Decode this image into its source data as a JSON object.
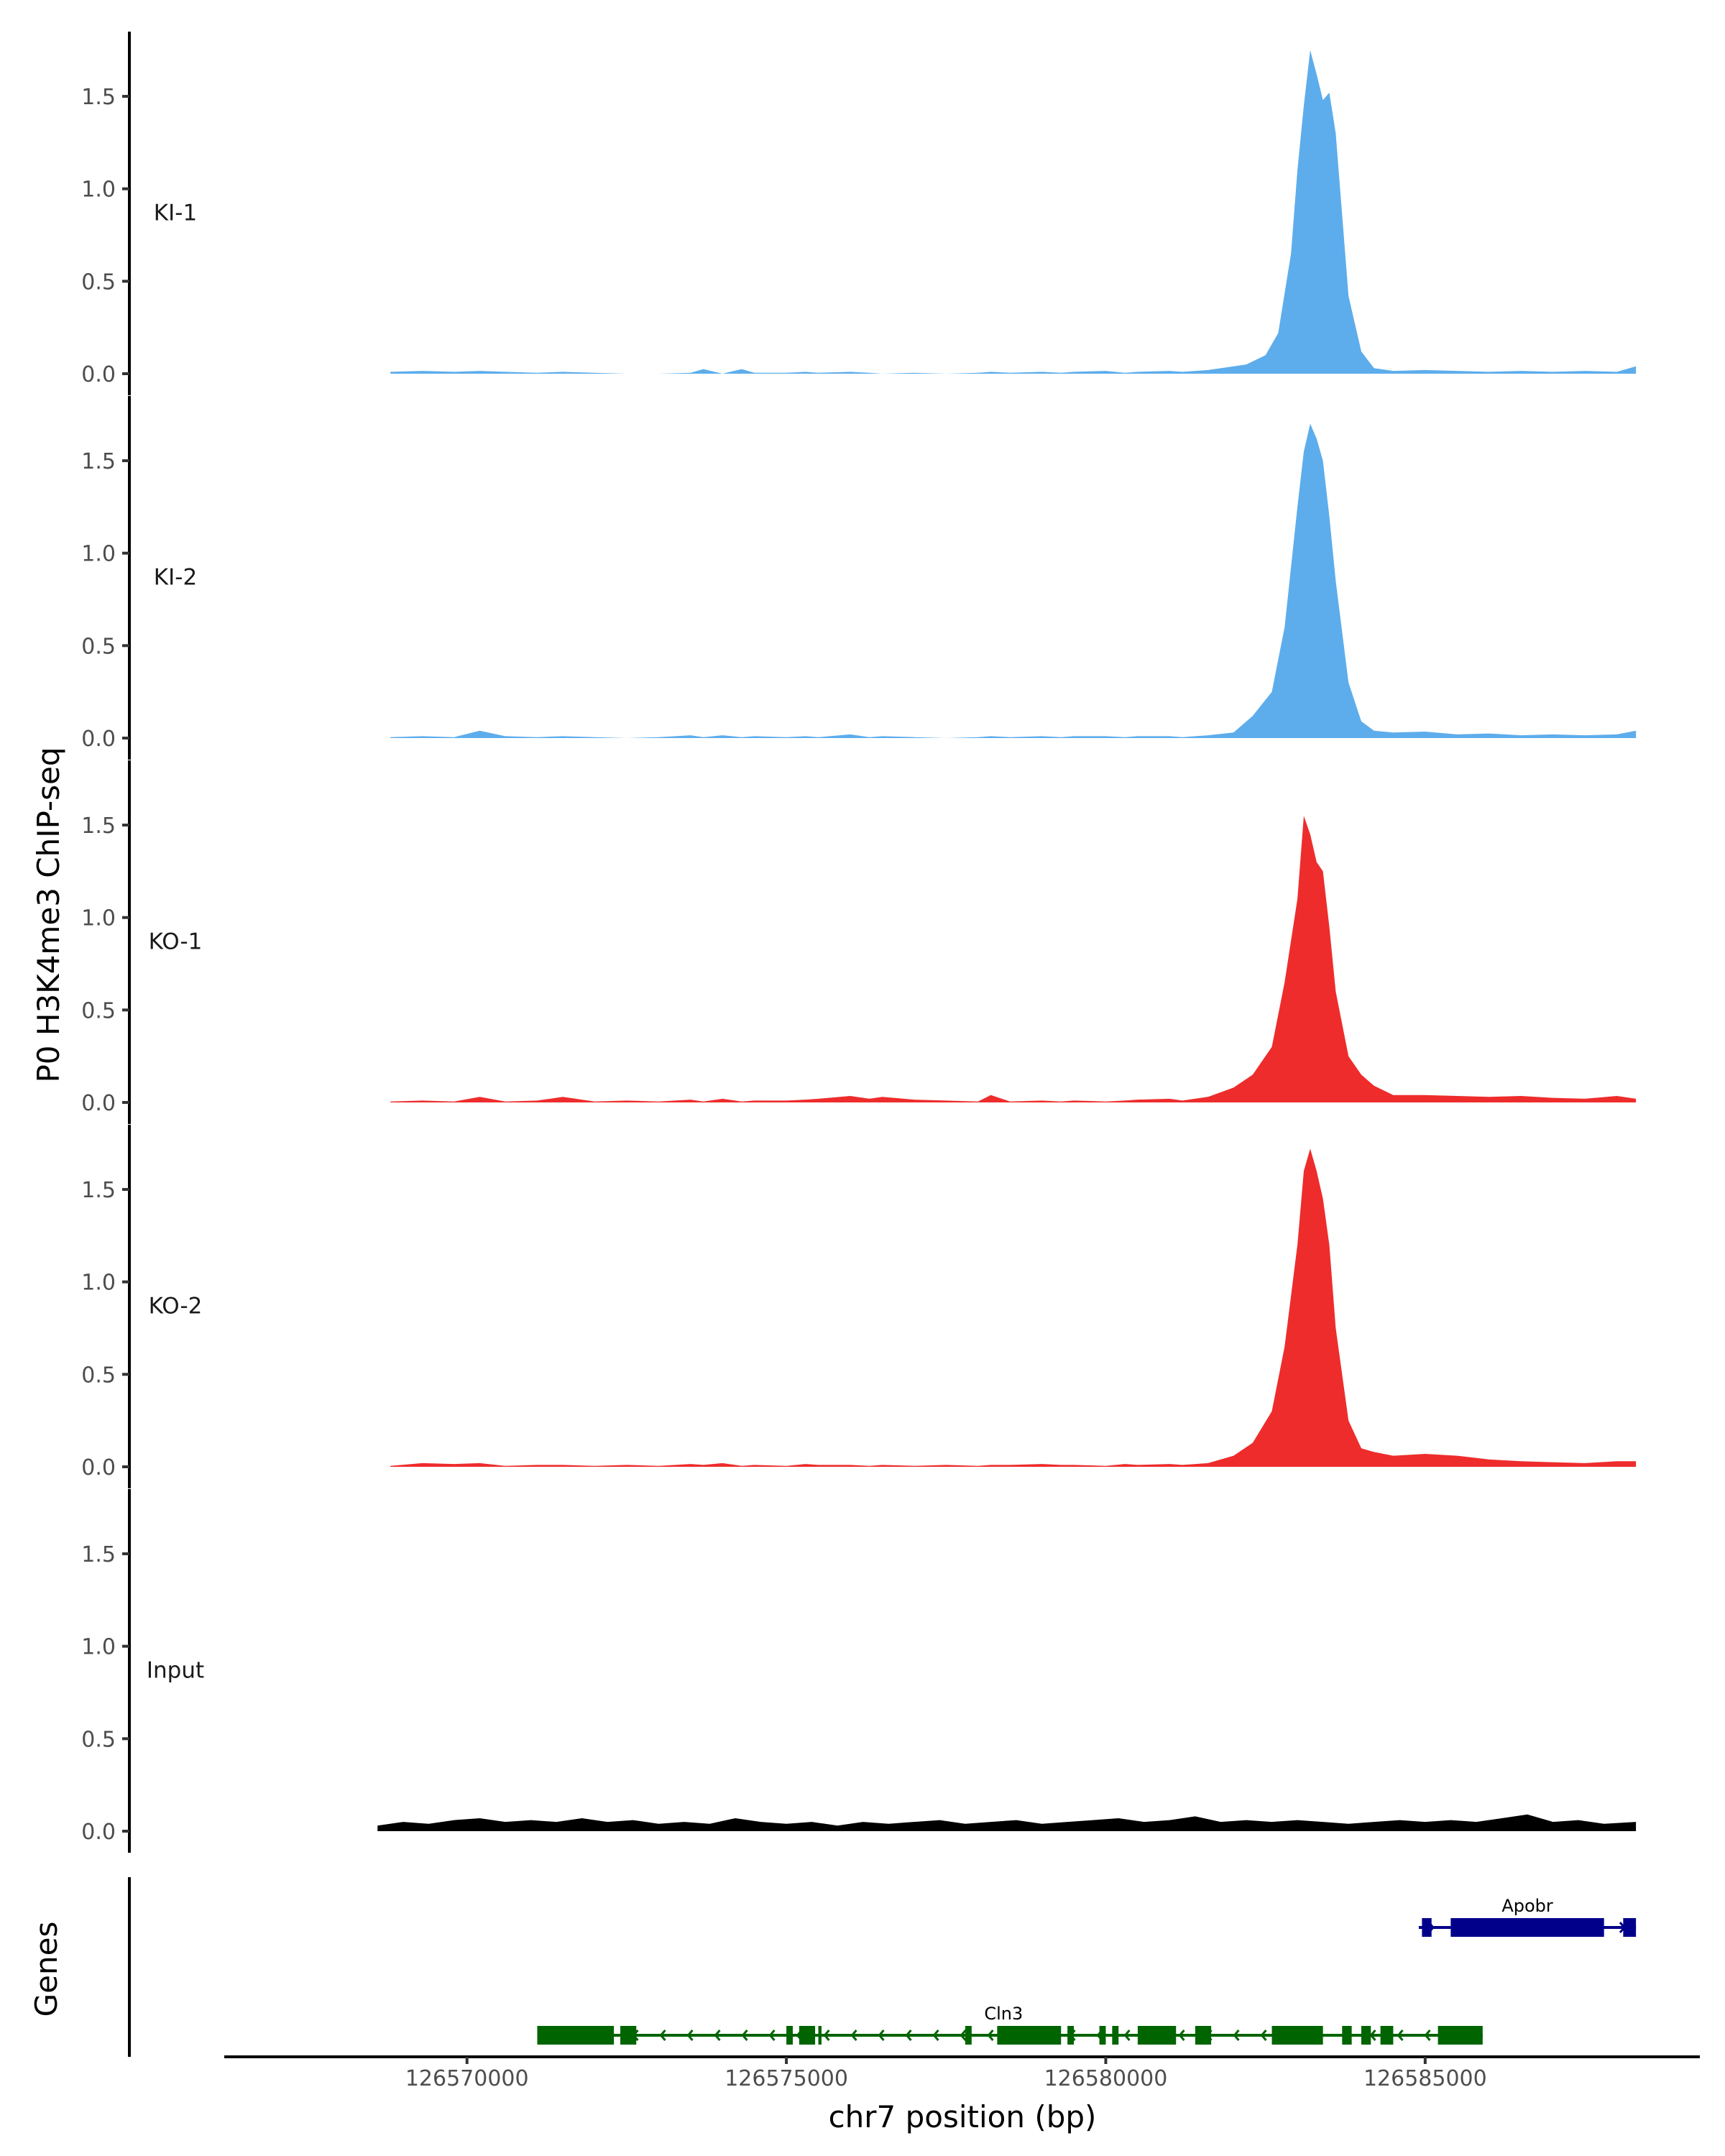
{
  "chart_data": {
    "type": "area",
    "ylabel": "P0 H3K4me3 ChIP-seq",
    "xlabel": "chr7 position (bp)",
    "ylim": [
      0,
      1.85
    ],
    "y_ticks": [
      "0.0",
      "0.5",
      "1.0",
      "1.5"
    ],
    "y_tick_values": [
      0,
      0.5,
      1.0,
      1.5
    ],
    "xlim": [
      126566200,
      126589300
    ],
    "x_ticks": [
      "126570000",
      "126575000",
      "126580000",
      "126585000"
    ],
    "x_tick_values": [
      126570000,
      126575000,
      126580000,
      126585000
    ],
    "grid": false,
    "legend": "none",
    "tracks": [
      {
        "name": "KI-1",
        "color": "#5DADEC",
        "x": [
          126568800,
          126569300,
          126569800,
          126570200,
          126570600,
          126571100,
          126571500,
          126572000,
          126572500,
          126573000,
          126573500,
          126573700,
          126574000,
          126574300,
          126574500,
          126575000,
          126575300,
          126575500,
          126576000,
          126576300,
          126576500,
          126577000,
          126577500,
          126578000,
          126578200,
          126578500,
          126579000,
          126579300,
          126579500,
          126580000,
          126580300,
          126580500,
          126581000,
          126581200,
          126581600,
          126582000,
          126582200,
          126582500,
          126582700,
          126582900,
          126583000,
          126583100,
          126583200,
          126583300,
          126583400,
          126583500,
          126583600,
          126583800,
          126584000,
          126584200,
          126584500,
          126585000,
          126585500,
          126586000,
          126586500,
          126587000,
          126587500,
          126588000,
          126588300
        ],
        "y": [
          0.01,
          0.015,
          0.01,
          0.015,
          0.01,
          0.005,
          0.01,
          0.005,
          0.0,
          0.0,
          0.005,
          0.025,
          0.0,
          0.025,
          0.005,
          0.005,
          0.01,
          0.005,
          0.01,
          0.005,
          0.0,
          0.005,
          0.0,
          0.005,
          0.01,
          0.005,
          0.01,
          0.005,
          0.01,
          0.015,
          0.005,
          0.01,
          0.015,
          0.01,
          0.02,
          0.04,
          0.05,
          0.1,
          0.22,
          0.65,
          1.1,
          1.45,
          1.75,
          1.62,
          1.48,
          1.52,
          1.3,
          0.42,
          0.12,
          0.03,
          0.015,
          0.02,
          0.015,
          0.01,
          0.015,
          0.01,
          0.015,
          0.01,
          0.04
        ]
      },
      {
        "name": "KI-2",
        "color": "#5DADEC",
        "x": [
          126568800,
          126569300,
          126569800,
          126570200,
          126570600,
          126571100,
          126571500,
          126572000,
          126572500,
          126573000,
          126573500,
          126573700,
          126574000,
          126574300,
          126574500,
          126575000,
          126575300,
          126575500,
          126576000,
          126576300,
          126576500,
          126577000,
          126577500,
          126578000,
          126578200,
          126578500,
          126579000,
          126579300,
          126579500,
          126580000,
          126580300,
          126580500,
          126581000,
          126581200,
          126581600,
          126582000,
          126582300,
          126582600,
          126582800,
          126583000,
          126583100,
          126583200,
          126583300,
          126583400,
          126583500,
          126583600,
          126583800,
          126584000,
          126584200,
          126584500,
          126585000,
          126585500,
          126586000,
          126586500,
          126587000,
          126587500,
          126588000,
          126588300
        ],
        "y": [
          0.005,
          0.01,
          0.005,
          0.04,
          0.01,
          0.005,
          0.01,
          0.005,
          0.0,
          0.005,
          0.015,
          0.005,
          0.015,
          0.005,
          0.01,
          0.005,
          0.01,
          0.005,
          0.02,
          0.005,
          0.01,
          0.005,
          0.0,
          0.005,
          0.01,
          0.005,
          0.01,
          0.005,
          0.01,
          0.01,
          0.005,
          0.01,
          0.01,
          0.005,
          0.015,
          0.03,
          0.12,
          0.25,
          0.6,
          1.25,
          1.55,
          1.7,
          1.62,
          1.5,
          1.2,
          0.85,
          0.3,
          0.09,
          0.04,
          0.03,
          0.035,
          0.02,
          0.025,
          0.015,
          0.02,
          0.015,
          0.02,
          0.04
        ]
      },
      {
        "name": "KO-1",
        "color": "#EE2C2C",
        "x": [
          126568800,
          126569300,
          126569800,
          126570200,
          126570600,
          126571100,
          126571500,
          126572000,
          126572500,
          126573000,
          126573500,
          126573700,
          126574000,
          126574300,
          126574500,
          126575000,
          126575300,
          126575500,
          126576000,
          126576300,
          126576500,
          126577000,
          126577500,
          126578000,
          126578200,
          126578500,
          126579000,
          126579300,
          126579500,
          126580000,
          126580300,
          126580500,
          126581000,
          126581200,
          126581600,
          126582000,
          126582300,
          126582600,
          126582800,
          126583000,
          126583100,
          126583200,
          126583300,
          126583400,
          126583500,
          126583600,
          126583800,
          126584000,
          126584200,
          126584500,
          126585000,
          126585500,
          126586000,
          126586500,
          126587000,
          126587500,
          126588000,
          126588300
        ],
        "y": [
          0.005,
          0.01,
          0.005,
          0.03,
          0.005,
          0.01,
          0.03,
          0.005,
          0.01,
          0.005,
          0.015,
          0.005,
          0.02,
          0.005,
          0.01,
          0.01,
          0.015,
          0.02,
          0.035,
          0.02,
          0.03,
          0.015,
          0.01,
          0.005,
          0.04,
          0.005,
          0.01,
          0.005,
          0.01,
          0.005,
          0.01,
          0.015,
          0.02,
          0.01,
          0.03,
          0.08,
          0.15,
          0.3,
          0.65,
          1.1,
          1.55,
          1.45,
          1.3,
          1.25,
          0.95,
          0.6,
          0.25,
          0.15,
          0.09,
          0.04,
          0.04,
          0.035,
          0.03,
          0.035,
          0.025,
          0.02,
          0.035,
          0.02
        ]
      },
      {
        "name": "KO-2",
        "color": "#EE2C2C",
        "x": [
          126568800,
          126569300,
          126569800,
          126570200,
          126570600,
          126571100,
          126571500,
          126572000,
          126572500,
          126573000,
          126573500,
          126573700,
          126574000,
          126574300,
          126574500,
          126575000,
          126575300,
          126575500,
          126576000,
          126576300,
          126576500,
          126577000,
          126577500,
          126578000,
          126578200,
          126578500,
          126579000,
          126579300,
          126579500,
          126580000,
          126580300,
          126580500,
          126581000,
          126581200,
          126581600,
          126582000,
          126582300,
          126582600,
          126582800,
          126583000,
          126583100,
          126583200,
          126583300,
          126583400,
          126583500,
          126583600,
          126583800,
          126584000,
          126584200,
          126584500,
          126585000,
          126585500,
          126586000,
          126586500,
          126587000,
          126587500,
          126588000,
          126588300
        ],
        "y": [
          0.005,
          0.02,
          0.015,
          0.02,
          0.005,
          0.01,
          0.01,
          0.005,
          0.01,
          0.005,
          0.015,
          0.01,
          0.02,
          0.005,
          0.01,
          0.005,
          0.015,
          0.01,
          0.01,
          0.005,
          0.01,
          0.005,
          0.01,
          0.005,
          0.01,
          0.01,
          0.015,
          0.01,
          0.01,
          0.005,
          0.015,
          0.01,
          0.015,
          0.01,
          0.02,
          0.06,
          0.13,
          0.3,
          0.65,
          1.2,
          1.6,
          1.72,
          1.6,
          1.45,
          1.2,
          0.75,
          0.25,
          0.1,
          0.08,
          0.06,
          0.07,
          0.06,
          0.04,
          0.03,
          0.025,
          0.02,
          0.03,
          0.03
        ]
      },
      {
        "name": "Input",
        "color": "#000000",
        "x": [
          126568600,
          126569000,
          126569400,
          126569800,
          126570200,
          126570600,
          126571000,
          126571400,
          126571800,
          126572200,
          126572600,
          126573000,
          126573400,
          126573800,
          126574200,
          126574600,
          126575000,
          126575400,
          126575800,
          126576200,
          126576600,
          126577000,
          126577400,
          126577800,
          126578200,
          126578600,
          126579000,
          126579400,
          126579800,
          126580200,
          126580600,
          126581000,
          126581400,
          126581800,
          126582200,
          126582600,
          126583000,
          126583400,
          126583800,
          126584200,
          126584600,
          126585000,
          126585400,
          126585800,
          126586200,
          126586600,
          126587000,
          126587400,
          126587800,
          126588300
        ],
        "y": [
          0.03,
          0.05,
          0.04,
          0.06,
          0.07,
          0.05,
          0.06,
          0.05,
          0.07,
          0.05,
          0.06,
          0.04,
          0.05,
          0.04,
          0.07,
          0.05,
          0.04,
          0.05,
          0.03,
          0.05,
          0.04,
          0.05,
          0.06,
          0.04,
          0.05,
          0.06,
          0.04,
          0.05,
          0.06,
          0.07,
          0.05,
          0.06,
          0.08,
          0.05,
          0.06,
          0.05,
          0.06,
          0.05,
          0.04,
          0.05,
          0.06,
          0.05,
          0.06,
          0.05,
          0.07,
          0.09,
          0.05,
          0.06,
          0.04,
          0.05
        ]
      }
    ],
    "genes": {
      "label": "Genes",
      "items": [
        {
          "name": "Apobr",
          "strand": "+",
          "color": "#00008B",
          "start": 126584900,
          "end": 126588300,
          "exons": [
            [
              126584950,
              126585100
            ],
            [
              126585400,
              126587800
            ],
            [
              126588100,
              126588300
            ]
          ]
        },
        {
          "name": "Cln3",
          "strand": "-",
          "color": "#006400",
          "start": 126571100,
          "end": 126585900,
          "exons": [
            [
              126571100,
              126572300
            ],
            [
              126572400,
              126572650
            ],
            [
              126575000,
              126575100
            ],
            [
              126575200,
              126575450
            ],
            [
              126575500,
              126575550
            ],
            [
              126577800,
              126577900
            ],
            [
              126578300,
              126579300
            ],
            [
              126579400,
              126579500
            ],
            [
              126579900,
              126580000
            ],
            [
              126580100,
              126580200
            ],
            [
              126580500,
              126581100
            ],
            [
              126581400,
              126581650
            ],
            [
              126582600,
              126583400
            ],
            [
              126583700,
              126583850
            ],
            [
              126584000,
              126584150
            ],
            [
              126584300,
              126584500
            ],
            [
              126585200,
              126585900
            ]
          ]
        }
      ]
    }
  }
}
